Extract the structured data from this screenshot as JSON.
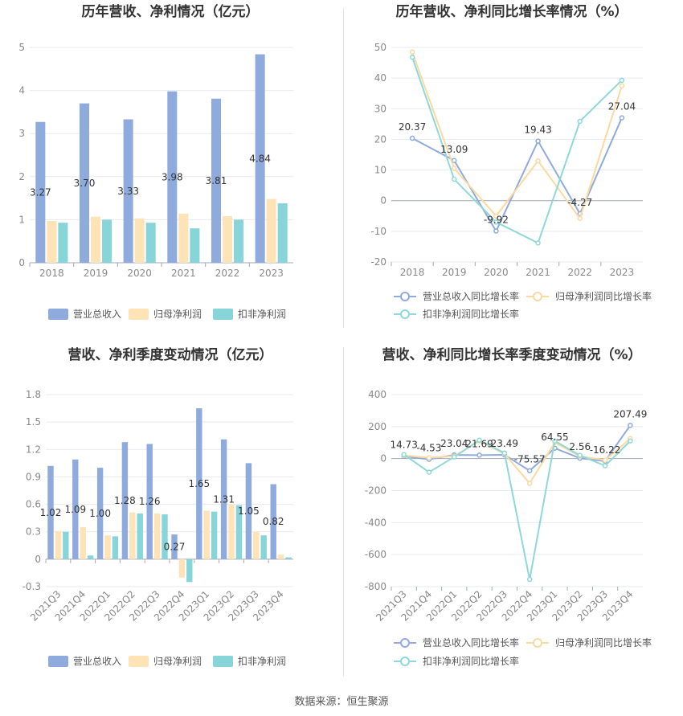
{
  "colors": {
    "revenue": "#8faadc",
    "parent_profit": "#fde3b5",
    "deducted_profit": "#87d5d8",
    "revenue_line": "#8faadc",
    "parent_line": "#fcd9a0",
    "deducted_line": "#8fd8d8",
    "axis": "#a0a8b8",
    "grid": "#e6e9ef"
  },
  "source_text": "数据来源：恒生聚源",
  "chart_data": [
    {
      "type": "bar",
      "title": "历年营收、净利情况（亿元）",
      "categories": [
        "2018",
        "2019",
        "2020",
        "2021",
        "2022",
        "2023"
      ],
      "ylim": [
        0,
        5
      ],
      "yticks": [
        "0",
        "1",
        "2",
        "3",
        "4",
        "5"
      ],
      "series": [
        {
          "name": "营业总收入",
          "values": [
            3.27,
            3.7,
            3.33,
            3.98,
            3.81,
            4.84
          ]
        },
        {
          "name": "归母净利润",
          "values": [
            0.97,
            1.07,
            1.03,
            1.14,
            1.08,
            1.48
          ]
        },
        {
          "name": "扣非净利润",
          "values": [
            0.93,
            1.0,
            0.93,
            0.8,
            1.0,
            1.38
          ]
        }
      ],
      "data_labels": [
        "3.27",
        "3.70",
        "3.33",
        "3.98",
        "3.81",
        "4.84"
      ],
      "grid": true,
      "legend": "bottom"
    },
    {
      "type": "line",
      "title": "历年营收、净利同比增长率情况（%）",
      "categories": [
        "2018",
        "2019",
        "2020",
        "2021",
        "2022",
        "2023"
      ],
      "ylim": [
        -20,
        50
      ],
      "yticks": [
        "-20",
        "-10",
        "0",
        "10",
        "20",
        "30",
        "40",
        "50"
      ],
      "series": [
        {
          "name": "营业总收入同比增长率",
          "values": [
            20.37,
            13.09,
            -9.92,
            19.43,
            -4.27,
            27.04
          ]
        },
        {
          "name": "归母净利润同比增长率",
          "values": [
            48.5,
            10.5,
            -5.0,
            13.0,
            -5.8,
            37.5
          ]
        },
        {
          "name": "扣非净利润同比增长率",
          "values": [
            46.8,
            7.0,
            -7.0,
            -13.8,
            25.9,
            39.3
          ]
        }
      ],
      "data_labels": [
        "20.37",
        "13.09",
        "-9.92",
        "19.43",
        "-4.27",
        "27.04"
      ],
      "grid": true,
      "legend": "bottom"
    },
    {
      "type": "bar",
      "title": "营收、净利季度变动情况（亿元）",
      "categories": [
        "2021Q3",
        "2021Q4",
        "2022Q1",
        "2022Q2",
        "2022Q3",
        "2022Q4",
        "2023Q1",
        "2023Q2",
        "2023Q3",
        "2023Q4"
      ],
      "ylim": [
        -0.3,
        1.8
      ],
      "yticks": [
        "-0.3",
        "0",
        "0.3",
        "0.6",
        "0.9",
        "1.2",
        "1.5",
        "1.8"
      ],
      "series": [
        {
          "name": "营业总收入",
          "values": [
            1.02,
            1.09,
            1.0,
            1.28,
            1.26,
            0.27,
            1.65,
            1.31,
            1.05,
            0.82
          ]
        },
        {
          "name": "归母净利润",
          "values": [
            0.31,
            0.35,
            0.26,
            0.51,
            0.5,
            -0.2,
            0.53,
            0.6,
            0.3,
            0.05
          ]
        },
        {
          "name": "扣非净利润",
          "values": [
            0.3,
            0.04,
            0.25,
            0.5,
            0.49,
            -0.25,
            0.52,
            0.59,
            0.26,
            0.02
          ]
        }
      ],
      "data_labels": [
        "1.02",
        "1.09",
        "1.00",
        "1.28",
        "1.26",
        "0.27",
        "1.65",
        "1.31",
        "1.05",
        "0.82"
      ],
      "grid": true,
      "legend": "bottom"
    },
    {
      "type": "line",
      "title": "营收、净利同比增长率季度变动情况（%）",
      "categories": [
        "2021Q3",
        "2021Q4",
        "2022Q1",
        "2022Q2",
        "2022Q3",
        "2022Q4",
        "2023Q1",
        "2023Q2",
        "2023Q3",
        "2023Q4"
      ],
      "ylim": [
        -800,
        400
      ],
      "yticks": [
        "-800",
        "-600",
        "-400",
        "-200",
        "0",
        "200",
        "400"
      ],
      "series": [
        {
          "name": "营业总收入同比增长率",
          "values": [
            14.73,
            -4.53,
            23.04,
            21.69,
            23.49,
            -75.57,
            64.55,
            2.56,
            -16.22,
            207.49
          ]
        },
        {
          "name": "归母净利润同比增长率",
          "values": [
            20,
            5,
            15,
            110,
            30,
            -155,
            100,
            15,
            -10,
            125
          ]
        },
        {
          "name": "扣非净利润同比增长率",
          "values": [
            25,
            -85,
            10,
            115,
            35,
            -755,
            110,
            20,
            -45,
            110
          ]
        }
      ],
      "data_labels": [
        "14.73",
        "-4.53",
        "23.04",
        "21.69",
        "23.49",
        "-75.57",
        "64.55",
        "2.56",
        "-16.22",
        "207.49"
      ],
      "grid": true,
      "legend": "bottom"
    }
  ]
}
